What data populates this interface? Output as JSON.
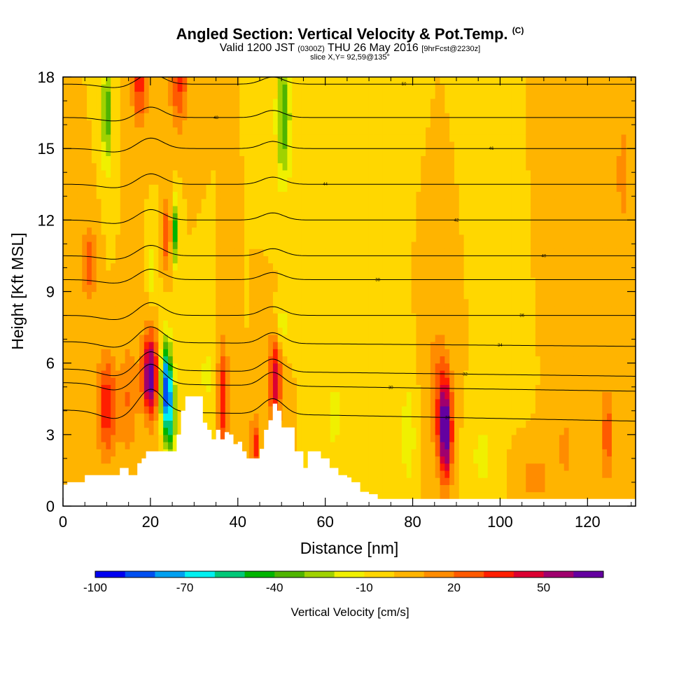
{
  "header": {
    "title_main": "Angled Section: Vertical Velocity & Pot.Temp.",
    "title_tag": "(C)",
    "valid_prefix": "Valid 1200 JST",
    "valid_utc": "(0300Z)",
    "valid_date": "THU 26 May 2016",
    "valid_fcst": "[9hrFcst@2230z]",
    "slice": "slice X,Y= 92,59@135°"
  },
  "chart_data": {
    "type": "heatmap",
    "xlabel": "Distance [nm]",
    "ylabel": "Height [Kft MSL]",
    "xlim": [
      0,
      131
    ],
    "ylim": [
      0,
      18
    ],
    "x_ticks": [
      "0",
      "20",
      "40",
      "60",
      "80",
      "100",
      "120"
    ],
    "x_tick_values": [
      0,
      20,
      40,
      60,
      80,
      100,
      120
    ],
    "y_ticks": [
      "0",
      "3",
      "6",
      "9",
      "12",
      "15",
      "18"
    ],
    "y_tick_values": [
      0,
      3,
      6,
      9,
      12,
      15,
      18
    ],
    "background_value": 0,
    "colorbar": {
      "label": "Vertical Velocity [cm/s]",
      "labels": [
        "-100",
        "-70",
        "-40",
        "-10",
        "20",
        "50"
      ],
      "label_values": [
        -100,
        -70,
        -40,
        -10,
        20,
        50
      ],
      "min": -100,
      "max": 70,
      "colors": [
        "#0000f0",
        "#0050f0",
        "#00a0f0",
        "#00f0f0",
        "#00c878",
        "#00b400",
        "#50b400",
        "#a0d200",
        "#f0f000",
        "#ffd700",
        "#ffb400",
        "#ff8c00",
        "#ff5a00",
        "#ff1e00",
        "#dc0032",
        "#a0006e",
        "#6400a0"
      ]
    },
    "features": [
      {
        "x": 10,
        "y": 4.2,
        "value": 38,
        "sx": 1.6,
        "sy": 1.5
      },
      {
        "x": 6,
        "y": 10.2,
        "value": 25,
        "sx": 1.2,
        "sy": 1.2
      },
      {
        "x": 15,
        "y": 4.5,
        "value": 20,
        "sx": 1.5,
        "sy": 1.8
      },
      {
        "x": 20,
        "y": 5.5,
        "value": 70,
        "sx": 1.3,
        "sy": 1.2
      },
      {
        "x": 23.5,
        "y": 5.2,
        "value": -72,
        "sx": 0.9,
        "sy": 1.3
      },
      {
        "x": 24.5,
        "y": 3.8,
        "value": -45,
        "sx": 1.0,
        "sy": 1.4
      },
      {
        "x": 17.5,
        "y": 18,
        "value": 38,
        "sx": 1.3,
        "sy": 1.3
      },
      {
        "x": 26.5,
        "y": 18,
        "value": 32,
        "sx": 1.5,
        "sy": 1.5
      },
      {
        "x": 10,
        "y": 16.5,
        "value": -38,
        "sx": 0.8,
        "sy": 1.8
      },
      {
        "x": 25.5,
        "y": 11.5,
        "value": -45,
        "sx": 0.7,
        "sy": 1.0
      },
      {
        "x": 24,
        "y": 11.5,
        "value": 45,
        "sx": 0.6,
        "sy": 1.0
      },
      {
        "x": 20.5,
        "y": 9.8,
        "value": -22,
        "sx": 0.6,
        "sy": 0.9
      },
      {
        "x": 36.5,
        "y": 4.5,
        "value": 40,
        "sx": 0.9,
        "sy": 1.6
      },
      {
        "x": 33,
        "y": 5.5,
        "value": -12,
        "sx": 1.5,
        "sy": 1.5
      },
      {
        "x": 48.5,
        "y": 5.3,
        "value": 48,
        "sx": 1.0,
        "sy": 1.3
      },
      {
        "x": 44,
        "y": 2.6,
        "value": 35,
        "sx": 0.8,
        "sy": 0.8
      },
      {
        "x": 50.5,
        "y": 16.3,
        "value": -38,
        "sx": 1.2,
        "sy": 2.0
      },
      {
        "x": 50,
        "y": 7.6,
        "value": -18,
        "sx": 1.0,
        "sy": 0.7
      },
      {
        "x": 87.5,
        "y": 3.2,
        "value": 72,
        "sx": 1.1,
        "sy": 1.5
      },
      {
        "x": 85.5,
        "y": 5,
        "value": 18,
        "sx": 1.8,
        "sy": 2.0
      },
      {
        "x": 79,
        "y": 3,
        "value": -18,
        "sx": 1.2,
        "sy": 1.6
      },
      {
        "x": 62,
        "y": 3.8,
        "value": -15,
        "sx": 1.5,
        "sy": 1.2
      },
      {
        "x": 96,
        "y": 2,
        "value": -14,
        "sx": 2.0,
        "sy": 1.2
      },
      {
        "x": 124.5,
        "y": 3,
        "value": 26,
        "sx": 1.0,
        "sy": 1.5
      },
      {
        "x": 115,
        "y": 2.5,
        "value": 12,
        "sx": 2.0,
        "sy": 1.5
      },
      {
        "x": 108,
        "y": 1.2,
        "value": 15,
        "sx": 2.5,
        "sy": 0.8
      },
      {
        "x": 112,
        "y": 15,
        "value": 8,
        "sx": 3.0,
        "sy": 3.0
      },
      {
        "x": 70,
        "y": 13,
        "value": -10,
        "sx": 2.5,
        "sy": 3.5
      },
      {
        "x": 102,
        "y": 12,
        "value": -8,
        "sx": 2.5,
        "sy": 3.5
      },
      {
        "x": 128,
        "y": 14,
        "value": 12,
        "sx": 1.5,
        "sy": 3.0
      }
    ],
    "terrain": [
      [
        0,
        0.9
      ],
      [
        1,
        1.0
      ],
      [
        5,
        1.3
      ],
      [
        9,
        1.3
      ],
      [
        13,
        1.6
      ],
      [
        15,
        1.3
      ],
      [
        17,
        1.8
      ],
      [
        18,
        2.0
      ],
      [
        19,
        2.3
      ],
      [
        26,
        3.0
      ],
      [
        27,
        4.0
      ],
      [
        28,
        4.6
      ],
      [
        31,
        4.6
      ],
      [
        32,
        3.5
      ],
      [
        33,
        3.2
      ],
      [
        34,
        2.8
      ],
      [
        35,
        3.2
      ],
      [
        36,
        2.8
      ],
      [
        37,
        3.1
      ],
      [
        38,
        3.0
      ],
      [
        39,
        2.6
      ],
      [
        40,
        2.7
      ],
      [
        41,
        2.3
      ],
      [
        42,
        2.0
      ],
      [
        45,
        2.4
      ],
      [
        46,
        3.2
      ],
      [
        47,
        3.6
      ],
      [
        48,
        4.3
      ],
      [
        49,
        4.0
      ],
      [
        50,
        3.3
      ],
      [
        53,
        2.3
      ],
      [
        55,
        1.6
      ],
      [
        56,
        2.3
      ],
      [
        59,
        2.0
      ],
      [
        61,
        1.6
      ],
      [
        63,
        1.3
      ],
      [
        65,
        1.2
      ],
      [
        66,
        1.0
      ],
      [
        68,
        0.6
      ],
      [
        70,
        0.5
      ],
      [
        72,
        0.3
      ],
      [
        131,
        0.3
      ]
    ],
    "theta_contours": [
      {
        "label": "28",
        "label_x": 88,
        "base": 3.8
      },
      {
        "label": "30",
        "label_x": 75,
        "base": 5.0
      },
      {
        "label": "32",
        "label_x": 92,
        "base": 5.6
      },
      {
        "label": "34",
        "label_x": 100,
        "base": 6.8
      },
      {
        "label": "36",
        "label_x": 105,
        "base": 8.0
      },
      {
        "label": "38",
        "label_x": 72,
        "base": 9.5
      },
      {
        "label": "40",
        "label_x": 110,
        "base": 10.5
      },
      {
        "label": "42",
        "label_x": 90,
        "base": 12.0
      },
      {
        "label": "44",
        "label_x": 60,
        "base": 13.5
      },
      {
        "label": "46",
        "label_x": 98,
        "base": 15.0
      },
      {
        "label": "48",
        "label_x": 35,
        "base": 16.3
      },
      {
        "label": "50",
        "label_x": 78,
        "base": 17.7
      }
    ]
  }
}
